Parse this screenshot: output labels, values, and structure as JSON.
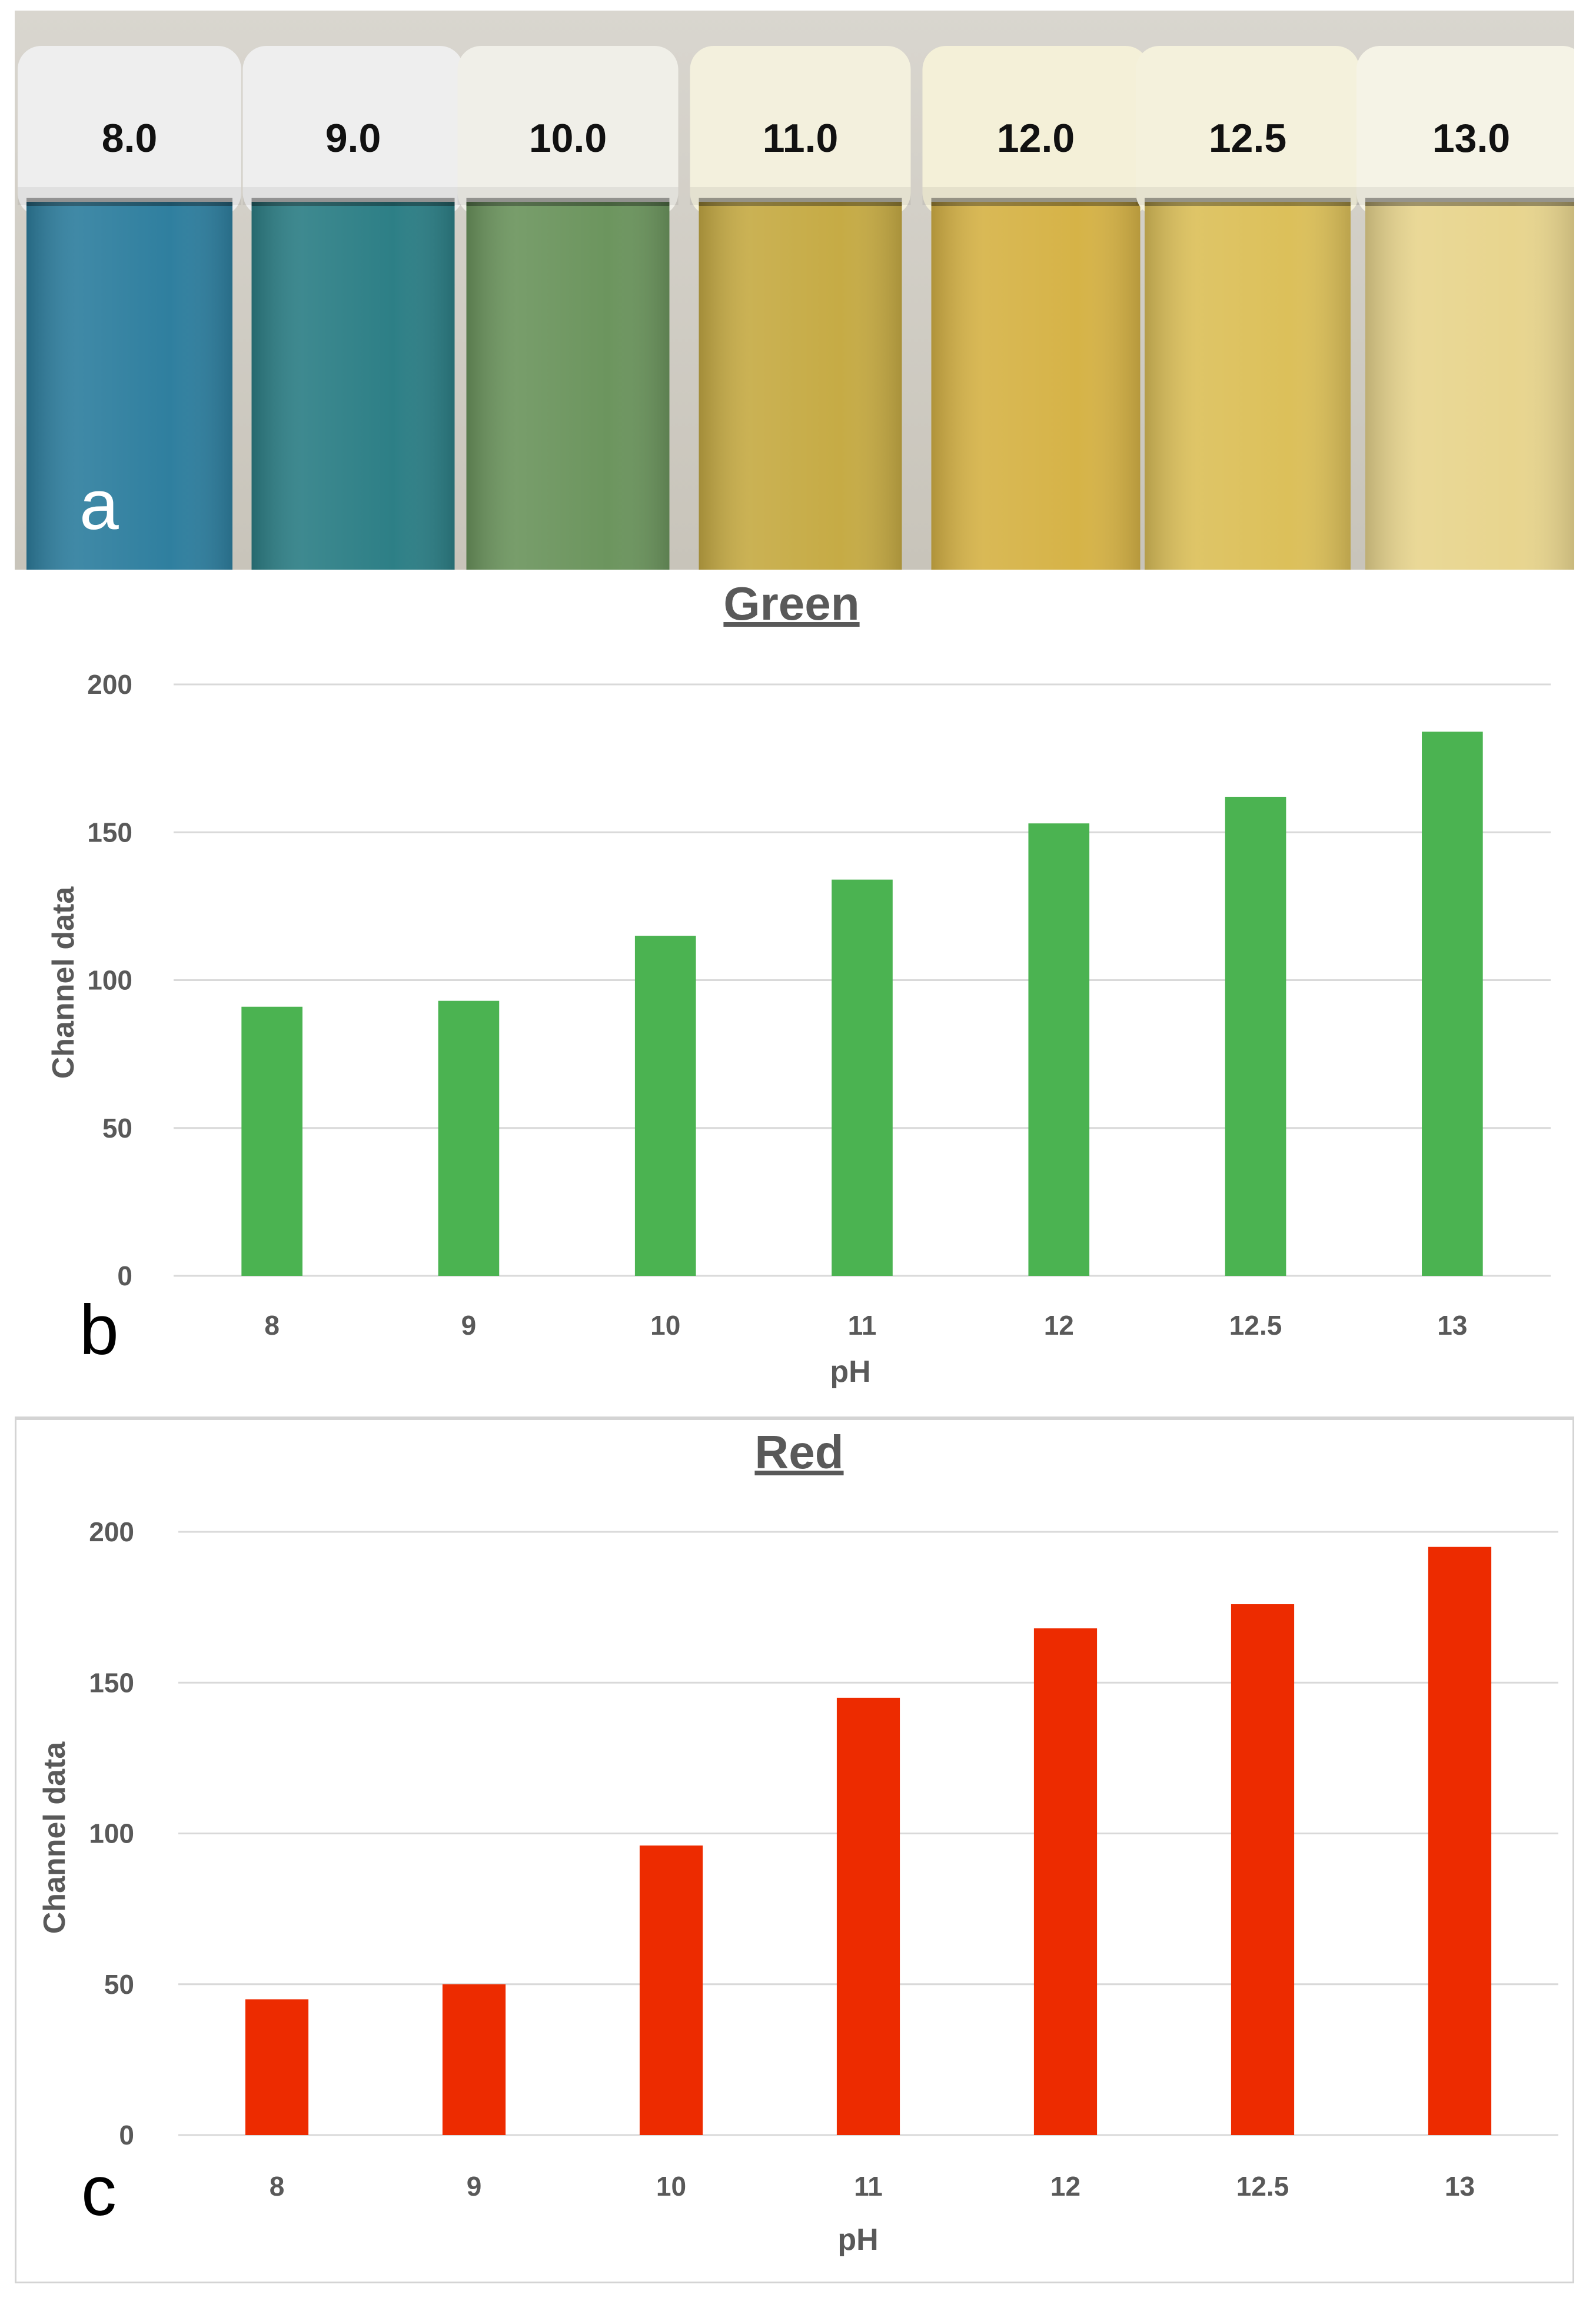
{
  "photo": {
    "panel_letter": "a",
    "tubes": [
      {
        "label": "8.0",
        "color": "#2f7f9f",
        "cap": "#eeeeee"
      },
      {
        "label": "9.0",
        "color": "#2d7f86",
        "cap": "#eeeeee"
      },
      {
        "label": "10.0",
        "color": "#6c955e",
        "cap": "#f0efe8"
      },
      {
        "label": "11.0",
        "color": "#c6ab45",
        "cap": "#f3f0dd"
      },
      {
        "label": "12.0",
        "color": "#d6b347",
        "cap": "#f4f0d8"
      },
      {
        "label": "12.5",
        "color": "#dcc05a",
        "cap": "#f4f1dc"
      },
      {
        "label": "13.0",
        "color": "#e8d58e",
        "cap": "#f5f3e6"
      }
    ]
  },
  "chart_data": [
    {
      "id": "green",
      "panel_letter": "b",
      "type": "bar",
      "title": "Green",
      "xlabel": "pH",
      "ylabel": "Channel data",
      "categories": [
        "8",
        "9",
        "10",
        "11",
        "12",
        "12.5",
        "13"
      ],
      "values": [
        91,
        93,
        115,
        134,
        153,
        162,
        184
      ],
      "ylim": [
        0,
        200
      ],
      "yticks": [
        0,
        50,
        100,
        150,
        200
      ],
      "bar_color": "#4bb351",
      "grid": true
    },
    {
      "id": "red",
      "panel_letter": "c",
      "type": "bar",
      "title": "Red",
      "xlabel": "pH",
      "ylabel": "Channel data",
      "categories": [
        "8",
        "9",
        "10",
        "11",
        "12",
        "12.5",
        "13"
      ],
      "values": [
        45,
        50,
        96,
        145,
        168,
        176,
        195
      ],
      "ylim": [
        0,
        200
      ],
      "yticks": [
        0,
        50,
        100,
        150,
        200
      ],
      "bar_color": "#ed2b00",
      "grid": true
    }
  ]
}
